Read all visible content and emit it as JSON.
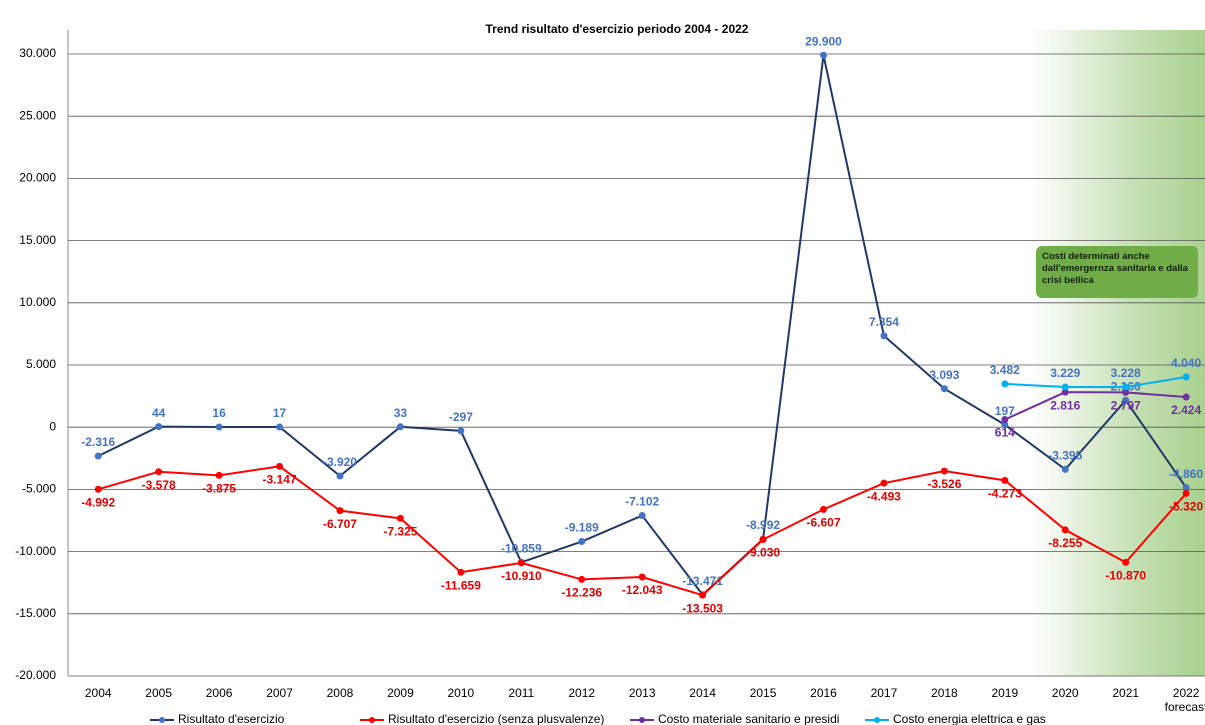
{
  "chart_data": {
    "type": "line",
    "title": "Trend risultato d'esercizio periodo 2004 - 2022",
    "categories": [
      "2004",
      "2005",
      "2006",
      "2007",
      "2008",
      "2009",
      "2010",
      "2011",
      "2012",
      "2013",
      "2014",
      "2015",
      "2016",
      "2017",
      "2018",
      "2019",
      "2020",
      "2021",
      "2022"
    ],
    "category_note": "forecast",
    "annotation": "Costi determinati anche dall'emergernza sanitaria e dalla crisi bellica",
    "ylim": [
      -20000,
      30000
    ],
    "yticks": [
      {
        "value": -20000,
        "label": "-20.000"
      },
      {
        "value": -15000,
        "label": "-15.000"
      },
      {
        "value": -10000,
        "label": "-10.000"
      },
      {
        "value": -5000,
        "label": "-5.000"
      },
      0,
      {
        "value": 5000,
        "label": "5.000"
      },
      {
        "value": 10000,
        "label": "10.000"
      },
      {
        "value": 15000,
        "label": "15.000"
      },
      {
        "value": 20000,
        "label": "20.000"
      },
      {
        "value": 25000,
        "label": "25.000"
      },
      {
        "value": 30000,
        "label": "30.000"
      }
    ],
    "grid": true,
    "legend": "bottom",
    "series": [
      {
        "name": "Risultato d'esercizio",
        "color": "#203864",
        "marker_color": "#4472c4",
        "label_color": "#4472c4",
        "label_side": "above",
        "values": [
          -2316,
          44,
          16,
          17,
          -3920,
          33,
          -297,
          -10859,
          -9189,
          -7102,
          -13471,
          -8992,
          29900,
          7354,
          3093,
          197,
          -3395,
          2166,
          -4860
        ],
        "value_labels": [
          "-2.316",
          "44",
          "16",
          "17",
          "-3.920",
          "33",
          "-297",
          "-10.859",
          "-9.189",
          "-7.102",
          "-13.471",
          "-8.992",
          "29.900",
          "7.354",
          "3.093",
          "197",
          "-3.395",
          "2.166",
          "-4.860"
        ]
      },
      {
        "name": "Risultato d'esercizio (senza plusvalenze)",
        "color": "#ff0000",
        "marker_color": "#ff0000",
        "label_color": "#e00000",
        "label_side": "below",
        "values": [
          -4992,
          -3578,
          -3875,
          -3147,
          -6707,
          -7325,
          -11659,
          -10910,
          -12236,
          -12043,
          -13503,
          -9030,
          -6607,
          -4493,
          -3526,
          -4273,
          -8255,
          -10870,
          -5320
        ],
        "value_labels": [
          "-4.992",
          "-3.578",
          "-3.875",
          "-3.147",
          "-6.707",
          "-7.325",
          "-11.659",
          "-10.910",
          "-12.236",
          "-12.043",
          "-13.503",
          "-9.030",
          "-6.607",
          "-4.493",
          "-3.526",
          "-4.273",
          "-8.255",
          "-10.870",
          "-5.320"
        ]
      },
      {
        "name": "Costo materiale sanitario e presidi",
        "color": "#7030a0",
        "marker_color": "#7030a0",
        "label_color": "#7030a0",
        "label_side": "below",
        "values": [
          null,
          null,
          null,
          null,
          null,
          null,
          null,
          null,
          null,
          null,
          null,
          null,
          null,
          null,
          null,
          614,
          2816,
          2797,
          2424
        ],
        "value_labels": [
          null,
          null,
          null,
          null,
          null,
          null,
          null,
          null,
          null,
          null,
          null,
          null,
          null,
          null,
          null,
          "614",
          "2.816",
          "2.797",
          "2.424"
        ]
      },
      {
        "name": "Costo energia elettrica e gas",
        "color": "#00b0f0",
        "marker_color": "#00b0f0",
        "label_color": "#4472c4",
        "label_side": "above",
        "values": [
          null,
          null,
          null,
          null,
          null,
          null,
          null,
          null,
          null,
          null,
          null,
          null,
          null,
          null,
          null,
          3482,
          3229,
          3228,
          4040
        ],
        "value_labels": [
          null,
          null,
          null,
          null,
          null,
          null,
          null,
          null,
          null,
          null,
          null,
          null,
          null,
          null,
          null,
          "3.482",
          "3.229",
          "3.228",
          "4.040"
        ]
      }
    ]
  }
}
